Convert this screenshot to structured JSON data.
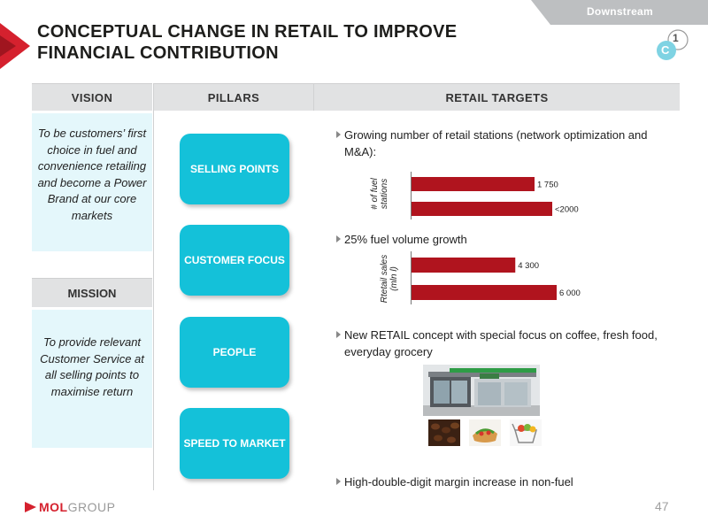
{
  "header": {
    "section_tab": "Downstream",
    "title_line1": "CONCEPTUAL CHANGE IN RETAIL TO IMPROVE",
    "title_line2": "FINANCIAL CONTRIBUTION",
    "badge_letter": "C",
    "badge_number": "1"
  },
  "table": {
    "vision_header": "VISION",
    "pillars_header": "PILLARS",
    "targets_header": "RETAIL TARGETS",
    "vision_text": "To be customers’ first choice in fuel and convenience retailing and become a Power Brand at our core markets",
    "mission_header": "MISSION",
    "mission_text": "To provide relevant Customer Service at all selling points to maximise return"
  },
  "pillars": [
    "SELLING POINTS",
    "CUSTOMER FOCUS",
    "PEOPLE",
    "SPEED TO MARKET"
  ],
  "targets": {
    "bullet1": "Growing number of retail stations (network optimization and M&A):",
    "bullet2": "25% fuel volume growth",
    "bullet3": "New RETAIL concept with special focus on coffee, fresh food, everyday grocery",
    "bullet4": "High-double-digit margin increase in non-fuel"
  },
  "chart_data": [
    {
      "type": "bar",
      "orientation": "horizontal",
      "ylabel": "# of fuel stations",
      "categories": [
        "",
        ""
      ],
      "values": [
        1750,
        2000
      ],
      "data_labels": [
        "1 750",
        "<2000"
      ],
      "color": "#b0141e"
    },
    {
      "type": "bar",
      "orientation": "horizontal",
      "ylabel": "Rtetail sales (mln l)",
      "categories": [
        "",
        ""
      ],
      "values": [
        4300,
        6000
      ],
      "data_labels": [
        "4 300",
        "6 000"
      ],
      "color": "#b0141e"
    }
  ],
  "footer": {
    "logo_text_a": "MOL",
    "logo_text_b": "GROUP",
    "page_number": "47"
  },
  "colors": {
    "accent_cyan": "#14c1d9",
    "brand_red": "#d5212e",
    "bar_red": "#b0141e",
    "light_cyan_panel": "#e4f7fb",
    "header_gray": "#e1e2e3"
  }
}
